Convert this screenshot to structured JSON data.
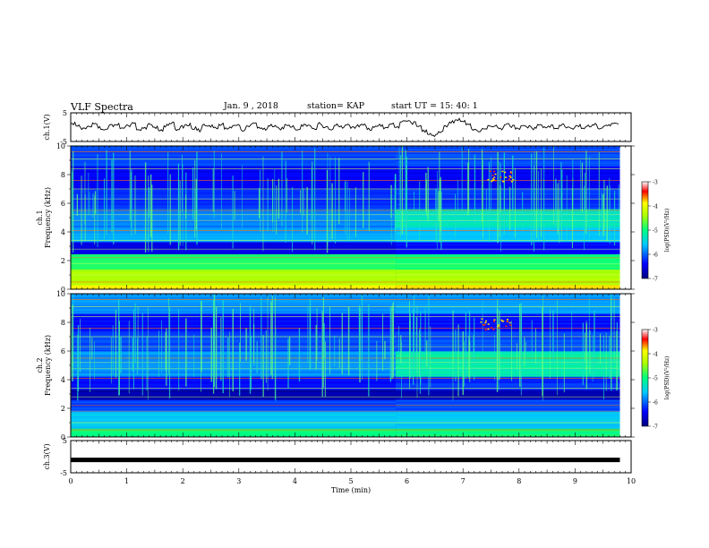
{
  "header": {
    "title": "VLF Spectra",
    "date": "Jan. 9 , 2018",
    "station": "station= KAP",
    "start": "start  UT =   15: 40: 1"
  },
  "chart_data": [
    {
      "type": "line",
      "panel": "ch1-waveform",
      "ylabel": "ch.1(V)",
      "ylim": [
        -5,
        5
      ],
      "yticks": [
        "5",
        "-5"
      ],
      "xlim": [
        0,
        10
      ],
      "values_note_free": true,
      "samples": [
        1.2,
        0.4,
        -0.8,
        0.2,
        1.5,
        -0.3,
        -1.0,
        0.6,
        0.9,
        -0.5,
        0.3,
        1.1,
        -0.9,
        -0.2,
        0.8,
        0.0,
        -1.2,
        0.5,
        1.3,
        -0.6,
        0.2,
        0.9,
        -0.4,
        -1.1,
        0.7,
        0.3,
        -0.2,
        1.0,
        -0.7,
        0.1,
        0.6,
        -0.9,
        0.4,
        1.2,
        -0.3,
        -0.8,
        0.5,
        0.2,
        -0.6,
        0.9,
        0.0,
        -1.0,
        0.8,
        0.3,
        -0.5,
        1.1,
        -0.2,
        -0.7,
        0.6,
        0.1,
        0.7,
        -0.4,
        0.3,
        1.0,
        -0.8,
        0.2,
        0.5,
        -0.6,
        0.9,
        -0.1,
        1.8,
        2.2,
        1.5,
        0.3,
        -1.5,
        -2.5,
        -2.8,
        -1.5,
        0.5,
        1.8,
        2.5,
        2.0,
        0.8,
        -0.6,
        -1.2,
        -0.4,
        0.6,
        0.2,
        -0.5,
        0.8,
        0.3,
        -0.7,
        0.5,
        0.1,
        -0.4,
        0.9,
        -0.2,
        0.4,
        -0.6,
        0.7,
        0.2,
        -0.3,
        0.6,
        -0.5,
        0.3,
        0.8,
        -0.4,
        0.2,
        0.9,
        1.4
      ]
    },
    {
      "type": "heatmap",
      "panel": "ch1-spectrogram",
      "ylabel": "ch.1",
      "ylabel2": "Frequency (kHz)",
      "ylim": [
        0,
        10
      ],
      "yticks": [
        "0",
        "2",
        "4",
        "6",
        "8",
        "10"
      ],
      "xlim": [
        0,
        10
      ],
      "colorbar": {
        "label": "log(PSD)(V²/Hz)",
        "range": [
          -7,
          -3
        ],
        "ticks": [
          "-3",
          "-4",
          "-5",
          "-6",
          "-7"
        ]
      }
    },
    {
      "type": "heatmap",
      "panel": "ch2-spectrogram",
      "ylabel": "ch.2",
      "ylabel2": "Frequency (kHz)",
      "ylim": [
        0,
        10
      ],
      "yticks": [
        "0",
        "2",
        "4",
        "6",
        "8",
        "10"
      ],
      "xlim": [
        0,
        10
      ],
      "colorbar": {
        "label": "log(PSD)(V²/Hz)",
        "range": [
          -7,
          -3
        ],
        "ticks": [
          "-3",
          "-4",
          "-5",
          "-6",
          "-7"
        ]
      }
    },
    {
      "type": "line",
      "panel": "ch3-waveform",
      "ylabel": "ch.3(V)",
      "ylim": [
        -5,
        5
      ],
      "yticks": [
        "5",
        "-5"
      ],
      "xlim": [
        0,
        10
      ],
      "constant_value": -1.0,
      "line_end_min": 9.8
    }
  ],
  "xaxis": {
    "label": "Time (min)",
    "ticks": [
      "0",
      "1",
      "2",
      "3",
      "4",
      "5",
      "6",
      "7",
      "8",
      "9",
      "10"
    ]
  }
}
